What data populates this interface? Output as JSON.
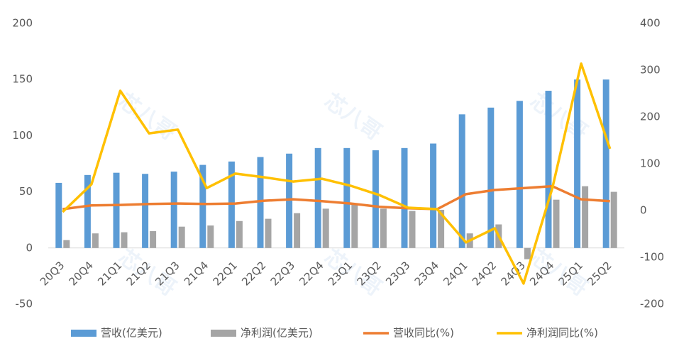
{
  "chart_data": {
    "type": "bar-line",
    "watermark": "芯八哥",
    "categories": [
      "20Q3",
      "20Q4",
      "21Q1",
      "21Q2",
      "21Q3",
      "21Q4",
      "22Q1",
      "22Q2",
      "22Q3",
      "22Q4",
      "23Q1",
      "23Q2",
      "23Q3",
      "23Q4",
      "24Q1",
      "24Q2",
      "24Q3",
      "24Q4",
      "25Q1",
      "25Q2"
    ],
    "series": [
      {
        "name": "营收(亿美元)",
        "type": "bar",
        "color": "#5b9bd5",
        "values": [
          58,
          65,
          67,
          66,
          68,
          74,
          77,
          81,
          84,
          89,
          89,
          87,
          89,
          93,
          119,
          125,
          131,
          140,
          150,
          150
        ]
      },
      {
        "name": "净利润(亿美元)",
        "type": "bar",
        "color": "#a5a5a5",
        "values": [
          7,
          13,
          14,
          15,
          19,
          20,
          24,
          26,
          31,
          35,
          39,
          35,
          33,
          34,
          13,
          21,
          -10,
          43,
          55,
          50
        ]
      },
      {
        "name": "营收同比(%)",
        "type": "line",
        "axis": "y2",
        "color": "#ed7d31",
        "values": [
          3,
          11,
          12,
          14,
          15,
          14,
          15,
          21,
          24,
          20,
          15,
          8,
          5,
          3,
          35,
          44,
          48,
          52,
          24,
          20
        ]
      },
      {
        "name": "净利润同比(%)",
        "type": "line",
        "axis": "y2",
        "color": "#ffc000",
        "values": [
          -3,
          56,
          256,
          165,
          173,
          48,
          79,
          71,
          62,
          68,
          53,
          33,
          6,
          3,
          -68,
          -38,
          -156,
          48,
          314,
          132
        ]
      }
    ],
    "ylim": [
      -50,
      200
    ],
    "yticks": [
      -50,
      0,
      50,
      100,
      150,
      200
    ],
    "y2lim": [
      -200,
      400
    ],
    "y2ticks": [
      -200,
      -100,
      0,
      100,
      200,
      300,
      400
    ],
    "legend": "bottom"
  }
}
